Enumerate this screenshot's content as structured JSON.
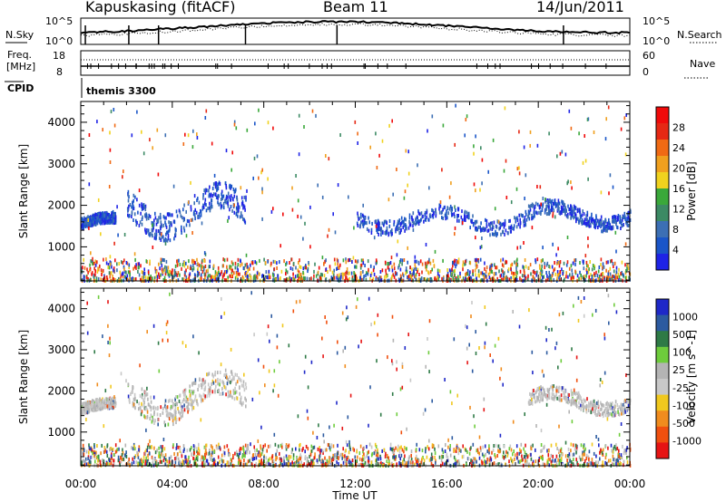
{
  "header": {
    "station": "Kapuskasing (fitACF)",
    "beam": "Beam 11",
    "date": "14/Jun/2011"
  },
  "top_panel": {
    "left_label": "N.Sky",
    "right_label": "N.Search",
    "left_ticks": [
      "10^5",
      "10^0"
    ],
    "right_ticks": [
      "10^5",
      "10^0"
    ]
  },
  "freq_panel": {
    "left_label_1": "Freq.",
    "left_label_2": "[MHz]",
    "right_label": "Nave",
    "left_ticks": [
      "18",
      "8"
    ],
    "right_ticks": [
      "60",
      "0"
    ]
  },
  "cpid": {
    "label": "CPID",
    "mode": "themis 3300"
  },
  "colors": {
    "power_scale": [
      "#1e23e6",
      "#1a55c8",
      "#3c6fb4",
      "#3c8a64",
      "#3aa83a",
      "#f0d21e",
      "#f0a01e",
      "#f06a14",
      "#e62814",
      "#f00a0a"
    ],
    "velocity_scale": [
      "#1e28c8",
      "#2c5aa0",
      "#2e7a46",
      "#6ecc3c",
      "#b4b4b4",
      "#c8c8c8",
      "#f0c81e",
      "#f08c1e",
      "#f0500f",
      "#e61414"
    ]
  },
  "chart_data": [
    {
      "type": "heatmap",
      "name_label": "Power [dB]",
      "ylabel": "Slant Range [km]",
      "xlabel": "Time UT",
      "xlim": [
        0,
        24
      ],
      "ylim": [
        180,
        4500
      ],
      "y_ticks": [
        1000,
        2000,
        3000,
        4000
      ],
      "y_tick_labels": [
        "1000",
        "2000",
        "3000",
        "4000"
      ],
      "x_tick_labels": [
        "00:00",
        "04:00",
        "08:00",
        "12:00",
        "16:00",
        "20:00",
        "00:00"
      ],
      "colorbar": {
        "label": "Power [dB]",
        "ticks": [
          "4",
          "8",
          "12",
          "16",
          "20",
          "24",
          "28"
        ]
      },
      "features": [
        {
          "x": [
            0,
            1.5
          ],
          "y": [
            1300,
            1800
          ],
          "level": "low"
        },
        {
          "x": [
            2,
            7.2
          ],
          "y": [
            1200,
            2500
          ],
          "level": "low"
        },
        {
          "x": [
            12,
            19.5
          ],
          "y": [
            1300,
            2000
          ],
          "level": "low"
        },
        {
          "x": [
            19.5,
            24
          ],
          "y": [
            1400,
            2100
          ],
          "level": "low"
        },
        {
          "x": [
            0,
            24
          ],
          "y": [
            180,
            700
          ],
          "level": "high"
        }
      ]
    },
    {
      "type": "heatmap",
      "ylabel": "Slant Range [km]",
      "xlabel": "Time UT",
      "xlim": [
        0,
        24
      ],
      "ylim": [
        180,
        4500
      ],
      "y_ticks": [
        1000,
        2000,
        3000,
        4000
      ],
      "y_tick_labels": [
        "1000",
        "2000",
        "3000",
        "4000"
      ],
      "x_tick_labels": [
        "00:00",
        "04:00",
        "08:00",
        "12:00",
        "16:00",
        "20:00",
        "00:00"
      ],
      "colorbar": {
        "label": "Velocity [m s^-1]",
        "ticks": [
          "1000",
          "500",
          "100",
          "25",
          "-25",
          "-100",
          "-500",
          "-1000"
        ]
      },
      "features": [
        {
          "x": [
            0,
            1.5
          ],
          "y": [
            1300,
            1800
          ],
          "level": "ground"
        },
        {
          "x": [
            2,
            7.2
          ],
          "y": [
            1200,
            2500
          ],
          "level": "ground"
        },
        {
          "x": [
            19.5,
            24
          ],
          "y": [
            1400,
            2100
          ],
          "level": "ground"
        },
        {
          "x": [
            0,
            24
          ],
          "y": [
            180,
            700
          ],
          "level": "mixed"
        }
      ]
    }
  ],
  "axis": {
    "xlabel": "Time UT",
    "x_tick_labels": [
      "00:00",
      "04:00",
      "08:00",
      "12:00",
      "16:00",
      "20:00",
      "00:00"
    ]
  }
}
